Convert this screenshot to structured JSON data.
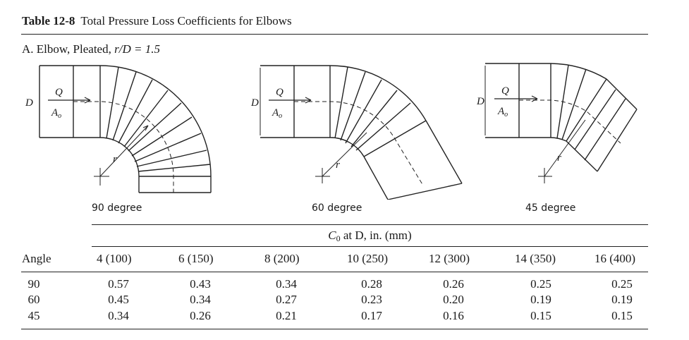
{
  "table": {
    "number": "Table 12-8",
    "title": "Total Pressure Loss Coefficients for Elbows",
    "section": "A. Elbow, Pleated,",
    "section_ratio": "r/D = 1.5"
  },
  "figures": [
    {
      "caption": "90 degree",
      "label_D": "D",
      "label_Q": "Q",
      "label_A": "A",
      "label_A_sub": "o",
      "label_r": "r"
    },
    {
      "caption": "60 degree",
      "label_D": "D",
      "label_Q": "Q",
      "label_A": "A",
      "label_A_sub": "o",
      "label_r": "r"
    },
    {
      "caption": "45 degree",
      "label_D": "D",
      "label_Q": "Q",
      "label_A": "A",
      "label_A_sub": "o",
      "label_r": "r"
    }
  ],
  "coef_header": {
    "symbol": "C",
    "subscript": "0",
    "rest": "at D, in. (mm)"
  },
  "columns": {
    "angle": "Angle",
    "diameters": [
      "4 (100)",
      "6 (150)",
      "8 (200)",
      "10 (250)",
      "12 (300)",
      "14 (350)",
      "16 (400)"
    ]
  },
  "rows": [
    {
      "angle": "90",
      "values": [
        "0.57",
        "0.43",
        "0.34",
        "0.28",
        "0.26",
        "0.25",
        "0.25"
      ]
    },
    {
      "angle": "60",
      "values": [
        "0.45",
        "0.34",
        "0.27",
        "0.23",
        "0.20",
        "0.19",
        "0.19"
      ]
    },
    {
      "angle": "45",
      "values": [
        "0.34",
        "0.26",
        "0.21",
        "0.17",
        "0.16",
        "0.15",
        "0.15"
      ]
    }
  ]
}
